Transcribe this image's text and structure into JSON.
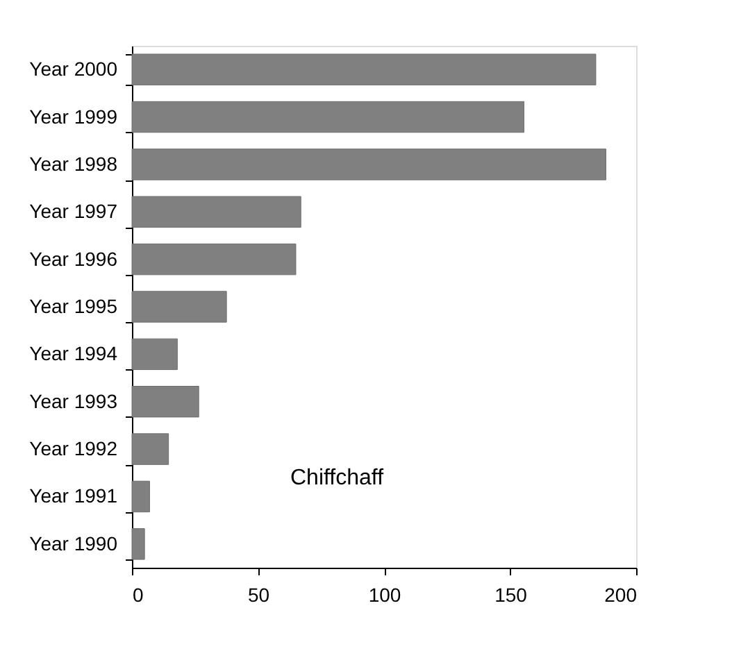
{
  "chart_data": {
    "type": "bar",
    "orientation": "horizontal",
    "categories": [
      "Year 2000",
      "Year 1999",
      "Year 1998",
      "Year 1997",
      "Year 1996",
      "Year 1995",
      "Year 1994",
      "Year 1993",
      "Year 1992",
      "Year 1991",
      "Year 1990"
    ],
    "values": [
      184,
      155.5,
      188,
      67,
      65,
      37.5,
      18,
      26.5,
      14.5,
      7,
      5
    ],
    "color": "#808080",
    "xlim": [
      0,
      200
    ],
    "xticks": [
      0,
      50,
      100,
      150,
      200
    ],
    "grid": false,
    "annotations": [
      "Chiffchaff"
    ]
  }
}
